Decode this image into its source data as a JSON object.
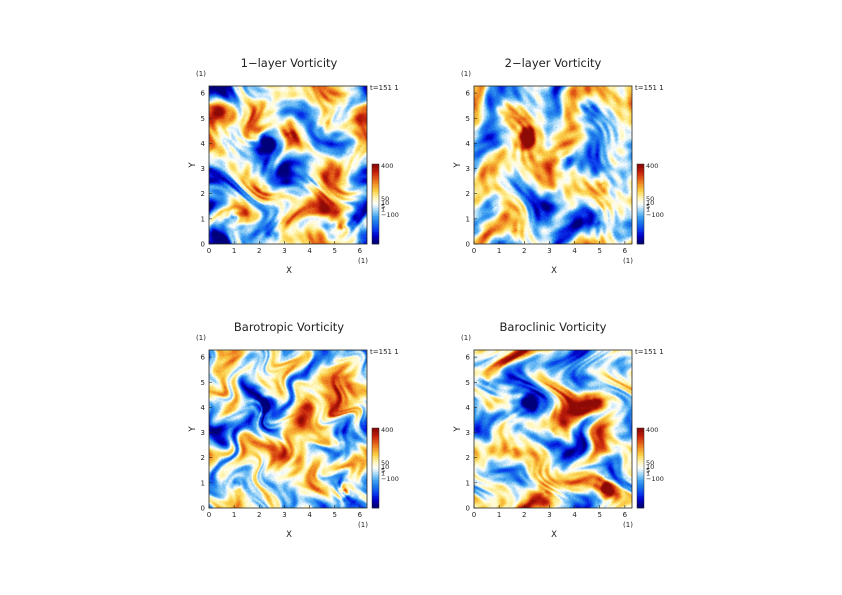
{
  "figure": {
    "colors": {
      "scale": [
        "#00007a",
        "#0000c8",
        "#0a3cf0",
        "#1a73e8",
        "#3fa2f2",
        "#9fd6f7",
        "#ffffff",
        "#fff6b0",
        "#fbd24a",
        "#f49a2a",
        "#e25a18",
        "#c4200c",
        "#8e0a06"
      ],
      "background": "#ffffff",
      "text": "#222222"
    }
  },
  "chart_data": [
    {
      "type": "heatmap",
      "title": "1−layer Vorticity",
      "xlabel": "X",
      "ylabel": "Y",
      "x_unit": "(1)",
      "y_unit": "(1)",
      "time_label": "t=151 1",
      "xlim": [
        0,
        6.283
      ],
      "ylim": [
        0,
        6.283
      ],
      "xticks": [
        "0",
        "1",
        "2",
        "3",
        "4",
        "5",
        "6"
      ],
      "yticks": [
        "0",
        "1",
        "2",
        "3",
        "4",
        "5",
        "6"
      ],
      "colorbar": {
        "range": [
          -300,
          400
        ],
        "labels": [
          "400",
          "50",
          "10",
          "5",
          "1",
          "−100"
        ],
        "label_values": [
          400,
          50,
          10,
          5,
          1,
          -100
        ]
      },
      "vortices": [
        {
          "x": 2.3,
          "y": 4.1,
          "strength": -0.95,
          "radius": 0.45
        },
        {
          "x": 5.35,
          "y": 0.65,
          "strength": 0.9,
          "radius": 0.4
        },
        {
          "x": 3.2,
          "y": 4.4,
          "strength": 0.55,
          "radius": 0.6
        },
        {
          "x": 1.0,
          "y": 1.1,
          "strength": -0.55,
          "radius": 0.3
        },
        {
          "x": 2.1,
          "y": 2.2,
          "strength": 0.45,
          "radius": 0.6
        },
        {
          "x": 4.6,
          "y": 4.8,
          "strength": 0.5,
          "radius": 0.6
        },
        {
          "x": 0.8,
          "y": 4.6,
          "strength": -0.5,
          "radius": 0.7
        },
        {
          "x": 4.0,
          "y": 2.5,
          "strength": -0.4,
          "radius": 0.7
        },
        {
          "x": 2.5,
          "y": 0.4,
          "strength": -0.5,
          "radius": 0.5
        },
        {
          "x": 5.6,
          "y": 3.6,
          "strength": -0.35,
          "radius": 0.6
        }
      ]
    },
    {
      "type": "heatmap",
      "title": "2−layer Vorticity",
      "xlabel": "X",
      "ylabel": "Y",
      "x_unit": "(1)",
      "y_unit": "(1)",
      "time_label": "t=151 1",
      "xlim": [
        0,
        6.283
      ],
      "ylim": [
        0,
        6.283
      ],
      "xticks": [
        "0",
        "1",
        "2",
        "3",
        "4",
        "5",
        "6"
      ],
      "yticks": [
        "0",
        "1",
        "2",
        "3",
        "4",
        "5",
        "6"
      ],
      "colorbar": {
        "range": [
          -300,
          400
        ],
        "labels": [
          "400",
          "50",
          "10",
          "5",
          "1",
          "−100"
        ],
        "label_values": [
          400,
          50,
          10,
          5,
          1,
          -100
        ]
      },
      "vortices": [
        {
          "x": 2.1,
          "y": 4.2,
          "strength": 0.9,
          "radius": 0.45
        },
        {
          "x": 1.2,
          "y": 4.9,
          "strength": 0.45,
          "radius": 0.7
        },
        {
          "x": 3.6,
          "y": 3.4,
          "strength": -0.55,
          "radius": 0.5
        },
        {
          "x": 5.1,
          "y": 2.4,
          "strength": 0.5,
          "radius": 0.5
        },
        {
          "x": 4.9,
          "y": 0.8,
          "strength": -0.55,
          "radius": 0.6
        },
        {
          "x": 0.8,
          "y": 1.5,
          "strength": -0.45,
          "radius": 0.6
        },
        {
          "x": 3.0,
          "y": 1.5,
          "strength": -0.5,
          "radius": 0.6
        },
        {
          "x": 4.6,
          "y": 5.4,
          "strength": -0.45,
          "radius": 0.6
        },
        {
          "x": 1.6,
          "y": 0.5,
          "strength": 0.4,
          "radius": 0.5
        }
      ]
    },
    {
      "type": "heatmap",
      "title": "Barotropic Vorticity",
      "xlabel": "X",
      "ylabel": "Y",
      "x_unit": "(1)",
      "y_unit": "(1)",
      "time_label": "t=151 1",
      "xlim": [
        0,
        6.283
      ],
      "ylim": [
        0,
        6.283
      ],
      "xticks": [
        "0",
        "1",
        "2",
        "3",
        "4",
        "5",
        "6"
      ],
      "yticks": [
        "0",
        "1",
        "2",
        "3",
        "4",
        "5",
        "6"
      ],
      "colorbar": {
        "range": [
          -300,
          400
        ],
        "labels": [
          "400",
          "50",
          "10",
          "5",
          "1",
          "−100"
        ],
        "label_values": [
          400,
          50,
          10,
          5,
          1,
          -100
        ]
      },
      "vortices": [
        {
          "x": 2.25,
          "y": 4.1,
          "strength": -0.75,
          "radius": 0.3
        },
        {
          "x": 5.35,
          "y": 0.7,
          "strength": 0.8,
          "radius": 0.3
        },
        {
          "x": 5.2,
          "y": 2.6,
          "strength": 0.45,
          "radius": 0.35
        },
        {
          "x": 1.1,
          "y": 1.0,
          "strength": -0.4,
          "radius": 0.25
        },
        {
          "x": 3.8,
          "y": 4.3,
          "strength": 0.3,
          "radius": 0.7
        },
        {
          "x": 0.8,
          "y": 3.2,
          "strength": -0.3,
          "radius": 0.8
        },
        {
          "x": 3.3,
          "y": 2.0,
          "strength": 0.3,
          "radius": 0.8
        },
        {
          "x": 5.2,
          "y": 5.2,
          "strength": 0.3,
          "radius": 0.7
        }
      ]
    },
    {
      "type": "heatmap",
      "title": "Baroclinic Vorticity",
      "xlabel": "X",
      "ylabel": "Y",
      "x_unit": "(1)",
      "y_unit": "(1)",
      "time_label": "t=151 1",
      "xlim": [
        0,
        6.283
      ],
      "ylim": [
        0,
        6.283
      ],
      "xticks": [
        "0",
        "1",
        "2",
        "3",
        "4",
        "5",
        "6"
      ],
      "yticks": [
        "0",
        "1",
        "2",
        "3",
        "4",
        "5",
        "6"
      ],
      "colorbar": {
        "range": [
          -300,
          400
        ],
        "labels": [
          "400",
          "50",
          "10",
          "5",
          "1",
          "−100"
        ],
        "label_values": [
          400,
          50,
          10,
          5,
          1,
          -100
        ]
      },
      "vortices": [
        {
          "x": 2.2,
          "y": 4.1,
          "strength": -0.95,
          "radius": 0.5
        },
        {
          "x": 5.3,
          "y": 0.7,
          "strength": 0.85,
          "radius": 0.35
        },
        {
          "x": 4.7,
          "y": 4.3,
          "strength": 0.6,
          "radius": 0.7
        },
        {
          "x": 1.5,
          "y": 2.3,
          "strength": 0.5,
          "radius": 0.6
        },
        {
          "x": 3.2,
          "y": 3.0,
          "strength": -0.45,
          "radius": 0.6
        },
        {
          "x": 0.6,
          "y": 5.0,
          "strength": -0.55,
          "radius": 0.7
        },
        {
          "x": 2.8,
          "y": 0.6,
          "strength": 0.5,
          "radius": 0.5
        },
        {
          "x": 5.6,
          "y": 2.4,
          "strength": -0.4,
          "radius": 0.6
        }
      ]
    }
  ]
}
